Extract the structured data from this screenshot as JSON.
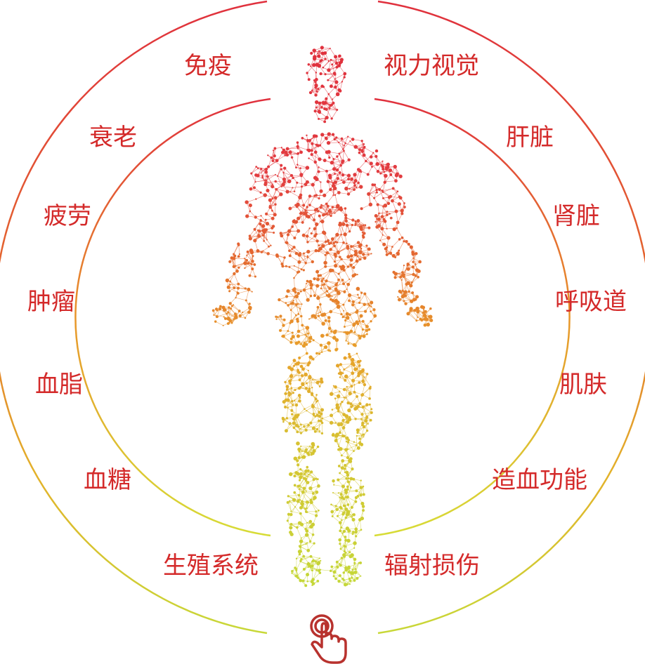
{
  "colors": {
    "text": "#d42a2a",
    "gradient_top": "#e0303d",
    "gradient_mid": "#e8962a",
    "gradient_bottom": "#c8d838",
    "hand": "#b8322e"
  },
  "left_labels": [
    "免疫",
    "衰老",
    "疲劳",
    "肿瘤",
    "血脂",
    "血糖",
    "生殖系统"
  ],
  "right_labels": [
    "视力视觉",
    "肝脏",
    "肾脏",
    "呼吸道",
    "肌肤",
    "造血功能",
    "辐射损伤"
  ],
  "icons": {
    "pointer": "hand-tap-icon",
    "figure": "human-body-network-icon"
  }
}
